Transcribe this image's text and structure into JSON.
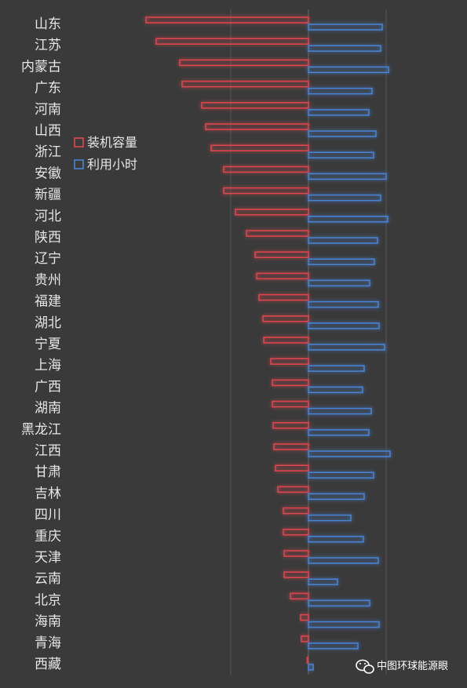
{
  "chart_data": {
    "type": "bar",
    "orientation": "horizontal-diverging",
    "categories": [
      "山东",
      "江苏",
      "内蒙古",
      "广东",
      "河南",
      "山西",
      "浙江",
      "安徽",
      "新疆",
      "河北",
      "陕西",
      "辽宁",
      "贵州",
      "福建",
      "湖北",
      "宁夏",
      "上海",
      "广西",
      "湖南",
      "黑龙江",
      "江西",
      "甘肃",
      "吉林",
      "四川",
      "重庆",
      "天津",
      "云南",
      "北京",
      "海南",
      "青海",
      "西藏"
    ],
    "series": [
      {
        "name": "装机容量",
        "color": "#e0464e",
        "direction": "left",
        "values": [
          207,
          194,
          164,
          161,
          136,
          131,
          124,
          108,
          108,
          93,
          79,
          68,
          66,
          63,
          58,
          57,
          48,
          46,
          46,
          45,
          44,
          42,
          39,
          32,
          32,
          31,
          31,
          23,
          10,
          9,
          2
        ]
      },
      {
        "name": "利用小时",
        "color": "#4a84d6",
        "direction": "right",
        "values": [
          94,
          92,
          102,
          81,
          77,
          86,
          83,
          99,
          92,
          101,
          88,
          84,
          78,
          89,
          90,
          97,
          71,
          69,
          80,
          77,
          104,
          83,
          71,
          54,
          70,
          89,
          37,
          78,
          90,
          63,
          6
        ]
      }
    ],
    "legend_position": "left-middle",
    "grid": true,
    "gridlines": [
      "left-of-zero",
      "zero",
      "right-of-zero"
    ]
  },
  "watermark": {
    "icon": "wechat-icon",
    "text": "中图环球能源眼"
  }
}
